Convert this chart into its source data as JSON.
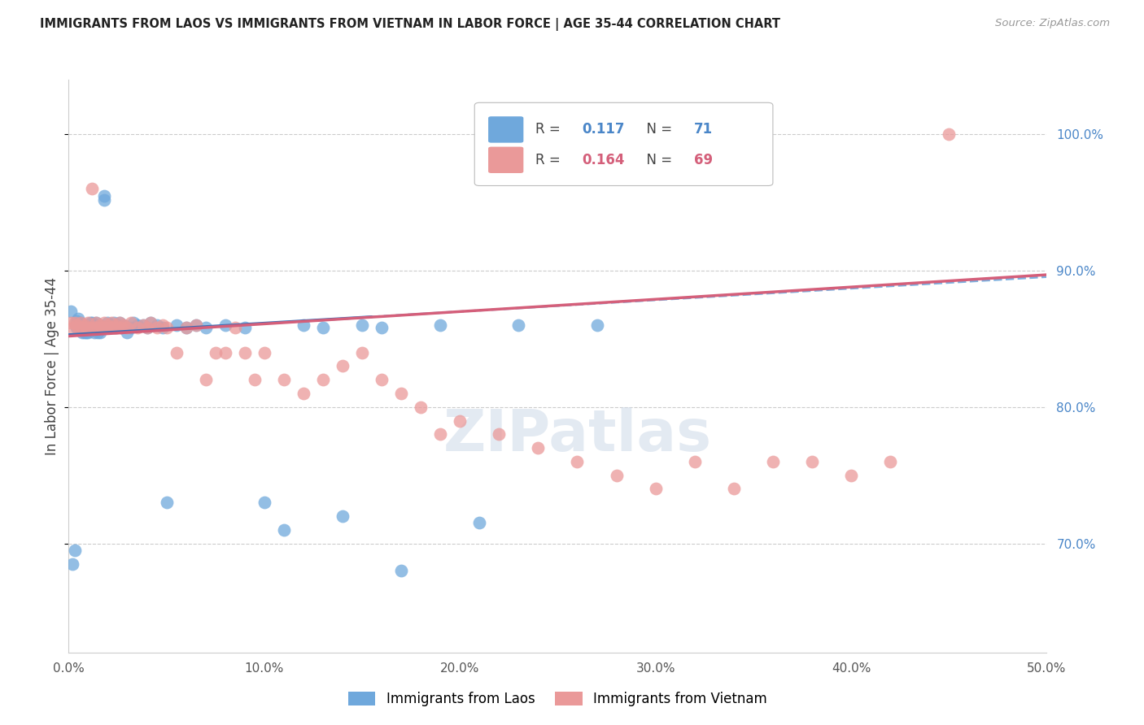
{
  "title": "IMMIGRANTS FROM LAOS VS IMMIGRANTS FROM VIETNAM IN LABOR FORCE | AGE 35-44 CORRELATION CHART",
  "source": "Source: ZipAtlas.com",
  "ylabel": "In Labor Force | Age 35-44",
  "xlim": [
    0.0,
    0.5
  ],
  "ylim": [
    0.62,
    1.04
  ],
  "xtick_vals": [
    0.0,
    0.1,
    0.2,
    0.3,
    0.4,
    0.5
  ],
  "xtick_labels": [
    "0.0%",
    "10.0%",
    "20.0%",
    "30.0%",
    "40.0%",
    "50.0%"
  ],
  "ytick_vals": [
    0.7,
    0.8,
    0.9,
    1.0
  ],
  "ytick_labels_right": [
    "70.0%",
    "80.0%",
    "90.0%",
    "100.0%"
  ],
  "legend_r_laos": "0.117",
  "legend_n_laos": "71",
  "legend_r_vietnam": "0.164",
  "legend_n_vietnam": "69",
  "color_laos": "#6fa8dc",
  "color_vietnam": "#ea9999",
  "color_laos_line": "#3d6eb5",
  "color_vietnam_line": "#d45f7a",
  "watermark_color": "#cdd9e8",
  "laos_x": [
    0.001,
    0.002,
    0.003,
    0.004,
    0.004,
    0.005,
    0.005,
    0.006,
    0.006,
    0.007,
    0.007,
    0.008,
    0.008,
    0.009,
    0.009,
    0.01,
    0.01,
    0.011,
    0.011,
    0.012,
    0.012,
    0.013,
    0.013,
    0.014,
    0.014,
    0.015,
    0.015,
    0.016,
    0.016,
    0.017,
    0.018,
    0.018,
    0.019,
    0.02,
    0.02,
    0.021,
    0.022,
    0.023,
    0.024,
    0.025,
    0.026,
    0.027,
    0.028,
    0.03,
    0.032,
    0.033,
    0.035,
    0.038,
    0.04,
    0.042,
    0.045,
    0.048,
    0.05,
    0.055,
    0.06,
    0.065,
    0.07,
    0.08,
    0.09,
    0.1,
    0.11,
    0.12,
    0.13,
    0.14,
    0.15,
    0.16,
    0.17,
    0.19,
    0.21,
    0.23,
    0.27
  ],
  "laos_y": [
    0.87,
    0.685,
    0.695,
    0.858,
    0.863,
    0.86,
    0.865,
    0.86,
    0.862,
    0.855,
    0.858,
    0.855,
    0.86,
    0.855,
    0.858,
    0.855,
    0.858,
    0.858,
    0.862,
    0.858,
    0.862,
    0.855,
    0.858,
    0.86,
    0.862,
    0.858,
    0.855,
    0.855,
    0.86,
    0.858,
    0.952,
    0.955,
    0.858,
    0.858,
    0.862,
    0.858,
    0.86,
    0.862,
    0.858,
    0.86,
    0.862,
    0.858,
    0.86,
    0.855,
    0.858,
    0.862,
    0.86,
    0.86,
    0.858,
    0.862,
    0.86,
    0.858,
    0.73,
    0.86,
    0.858,
    0.86,
    0.858,
    0.86,
    0.858,
    0.73,
    0.71,
    0.86,
    0.858,
    0.72,
    0.86,
    0.858,
    0.68,
    0.86,
    0.715,
    0.86,
    0.86
  ],
  "vietnam_x": [
    0.001,
    0.002,
    0.003,
    0.004,
    0.005,
    0.006,
    0.007,
    0.008,
    0.009,
    0.01,
    0.011,
    0.012,
    0.013,
    0.014,
    0.015,
    0.016,
    0.017,
    0.018,
    0.019,
    0.02,
    0.021,
    0.022,
    0.023,
    0.024,
    0.025,
    0.026,
    0.027,
    0.028,
    0.03,
    0.032,
    0.035,
    0.038,
    0.04,
    0.042,
    0.045,
    0.048,
    0.05,
    0.055,
    0.06,
    0.065,
    0.07,
    0.075,
    0.08,
    0.085,
    0.09,
    0.095,
    0.1,
    0.11,
    0.12,
    0.13,
    0.14,
    0.15,
    0.16,
    0.17,
    0.18,
    0.19,
    0.2,
    0.22,
    0.24,
    0.26,
    0.28,
    0.3,
    0.32,
    0.34,
    0.36,
    0.38,
    0.4,
    0.42,
    0.45
  ],
  "vietnam_y": [
    0.862,
    0.858,
    0.862,
    0.86,
    0.858,
    0.862,
    0.858,
    0.86,
    0.858,
    0.862,
    0.858,
    0.96,
    0.858,
    0.862,
    0.858,
    0.86,
    0.858,
    0.862,
    0.858,
    0.86,
    0.858,
    0.862,
    0.858,
    0.86,
    0.858,
    0.862,
    0.858,
    0.86,
    0.858,
    0.862,
    0.858,
    0.86,
    0.858,
    0.862,
    0.858,
    0.86,
    0.858,
    0.84,
    0.858,
    0.86,
    0.82,
    0.84,
    0.84,
    0.858,
    0.84,
    0.82,
    0.84,
    0.82,
    0.81,
    0.82,
    0.83,
    0.84,
    0.82,
    0.81,
    0.8,
    0.78,
    0.79,
    0.78,
    0.77,
    0.76,
    0.75,
    0.74,
    0.76,
    0.74,
    0.76,
    0.76,
    0.75,
    0.76,
    1.0
  ]
}
